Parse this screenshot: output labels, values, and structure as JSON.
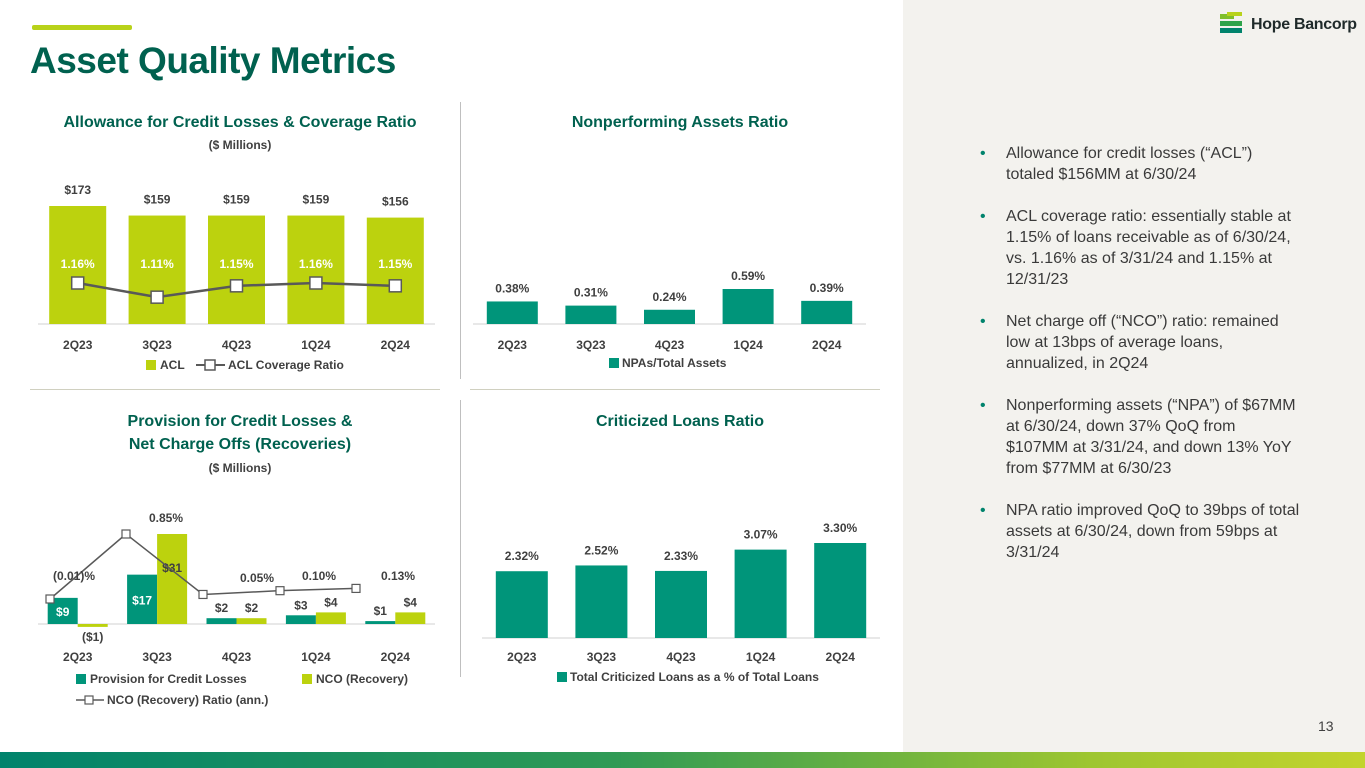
{
  "page": {
    "title": "Asset Quality Metrics",
    "logo_text": "Hope Bancorp",
    "page_number": "13",
    "colors": {
      "teal": "#00957a",
      "lime": "#bcd20e",
      "dark_green": "#00614f",
      "line": "#595959"
    }
  },
  "bullets": [
    "Allowance for credit losses (“ACL”) totaled $156MM at 6/30/24",
    "ACL coverage ratio: essentially stable at 1.15% of loans receivable as of 6/30/24, vs. 1.16% as of 3/31/24 and 1.15% at 12/31/23",
    "Net charge off (“NCO”) ratio: remained low at 13bps of average loans, annualized, in 2Q24",
    "Nonperforming assets (“NPA”) of $67MM at 6/30/24, down 37% QoQ from $107MM at 3/31/24, and down 13% YoY from $77MM at 6/30/23",
    "NPA ratio improved QoQ to 39bps of total assets at 6/30/24, down from 59bps at 3/31/24"
  ],
  "chart_data": [
    {
      "id": "acl",
      "type": "bar",
      "title": "Allowance for Credit Losses & Coverage Ratio",
      "subtitle": "($ Millions)",
      "categories": [
        "2Q23",
        "3Q23",
        "4Q23",
        "1Q24",
        "2Q24"
      ],
      "series": [
        {
          "name": "ACL",
          "kind": "bar",
          "values": [
            173,
            159,
            159,
            159,
            156
          ],
          "labels": [
            "$173",
            "$159",
            "$159",
            "$159",
            "$156"
          ]
        },
        {
          "name": "ACL Coverage Ratio",
          "kind": "line",
          "values": [
            1.16,
            1.11,
            1.15,
            1.16,
            1.15
          ],
          "labels": [
            "1.16%",
            "1.11%",
            "1.15%",
            "1.16%",
            "1.15%"
          ]
        }
      ],
      "ylim": [
        0,
        173
      ],
      "line_ylim": [
        1.0,
        1.2
      ],
      "legend": [
        "ACL",
        "ACL Coverage Ratio"
      ]
    },
    {
      "id": "npa",
      "type": "bar",
      "title": "Nonperforming Assets Ratio",
      "subtitle": "",
      "categories": [
        "2Q23",
        "3Q23",
        "4Q23",
        "1Q24",
        "2Q24"
      ],
      "series": [
        {
          "name": "NPAs/Total Assets",
          "kind": "bar",
          "values": [
            0.38,
            0.31,
            0.24,
            0.59,
            0.39
          ],
          "labels": [
            "0.38%",
            "0.31%",
            "0.24%",
            "0.59%",
            "0.39%"
          ]
        }
      ],
      "ylim": [
        0,
        1.7
      ],
      "legend": [
        "NPAs/Total Assets"
      ]
    },
    {
      "id": "provision",
      "type": "bar",
      "title": "Provision for Credit Losses &",
      "title_line2": "Net Charge Offs (Recoveries)",
      "subtitle": "($ Millions)",
      "categories": [
        "2Q23",
        "3Q23",
        "4Q23",
        "1Q24",
        "2Q24"
      ],
      "series": [
        {
          "name": "Provision for Credit Losses",
          "kind": "bar",
          "values": [
            9,
            17,
            2,
            3,
            1
          ],
          "labels": [
            "$9",
            "$17",
            "$2",
            "$3",
            "$1"
          ]
        },
        {
          "name": "NCO (Recovery)",
          "kind": "bar",
          "values": [
            -1,
            31,
            2,
            4,
            4
          ],
          "labels": [
            "($1)",
            "$31",
            "$2",
            "$4",
            "$4"
          ]
        },
        {
          "name": "NCO (Recovery) Ratio (ann.)",
          "kind": "line",
          "values": [
            -0.01,
            0.85,
            0.05,
            0.1,
            0.13
          ],
          "labels": [
            "(0.01)%",
            "0.85%",
            "0.05%",
            "0.10%",
            "0.13%"
          ]
        }
      ],
      "ylim": [
        -3,
        31
      ],
      "line_ylim": [
        -0.3,
        0.85
      ],
      "legend": [
        "Provision for Credit Losses",
        "NCO (Recovery)",
        "NCO (Recovery) Ratio (ann.)"
      ]
    },
    {
      "id": "criticized",
      "type": "bar",
      "title": "Criticized Loans Ratio",
      "subtitle": "",
      "categories": [
        "2Q23",
        "3Q23",
        "4Q23",
        "1Q24",
        "2Q24"
      ],
      "series": [
        {
          "name": "Total Criticized Loans as a % of Total Loans",
          "kind": "bar",
          "values": [
            2.32,
            2.52,
            2.33,
            3.07,
            3.3
          ],
          "labels": [
            "2.32%",
            "2.52%",
            "2.33%",
            "3.07%",
            "3.30%"
          ]
        }
      ],
      "ylim": [
        0,
        3.4
      ],
      "legend": [
        "Total Criticized Loans as a % of Total Loans"
      ]
    }
  ]
}
